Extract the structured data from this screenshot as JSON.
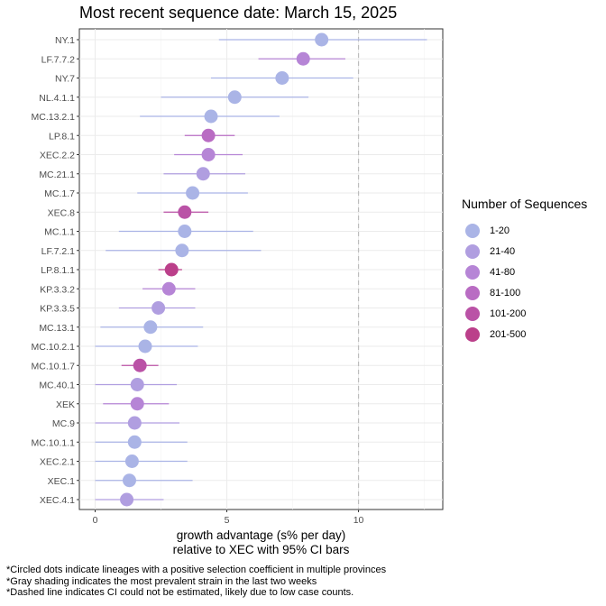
{
  "chart_data": {
    "type": "scatter",
    "title": "Most recent sequence date: March 15, 2025",
    "xlabel_line1": "growth advantage (s% per day)",
    "xlabel_line2": "relative to  XEC  with 95% CI bars",
    "xlim": [
      -0.6,
      13.2
    ],
    "xticks": [
      0,
      5,
      10
    ],
    "xtick_labels": [
      "0",
      "5",
      "10"
    ],
    "grid": true,
    "reference_line": {
      "x": 10,
      "style": "dashed"
    },
    "legend_title": "Number of Sequences",
    "legend_position": "right",
    "legend": [
      {
        "label": "1-20",
        "color": "#aab4e6"
      },
      {
        "label": "21-40",
        "color": "#b09ee0"
      },
      {
        "label": "41-80",
        "color": "#b685d6"
      },
      {
        "label": "81-100",
        "color": "#b96cc3"
      },
      {
        "label": "101-200",
        "color": "#ba52a6"
      },
      {
        "label": "201-500",
        "color": "#bb3f8a"
      }
    ],
    "series": [
      {
        "lineage": "NY.1",
        "estimate": 8.6,
        "ci": [
          4.7,
          12.6
        ],
        "count_bin": "1-20"
      },
      {
        "lineage": "LF.7.7.2",
        "estimate": 7.9,
        "ci": [
          6.2,
          9.5
        ],
        "count_bin": "41-80"
      },
      {
        "lineage": "NY.7",
        "estimate": 7.1,
        "ci": [
          4.4,
          9.8
        ],
        "count_bin": "1-20"
      },
      {
        "lineage": "NL.4.1.1",
        "estimate": 5.3,
        "ci": [
          2.5,
          8.1
        ],
        "count_bin": "1-20"
      },
      {
        "lineage": "MC.13.2.1",
        "estimate": 4.4,
        "ci": [
          1.7,
          7.0
        ],
        "count_bin": "1-20"
      },
      {
        "lineage": "LP.8.1",
        "estimate": 4.3,
        "ci": [
          3.4,
          5.3
        ],
        "count_bin": "81-100"
      },
      {
        "lineage": "XEC.2.2",
        "estimate": 4.3,
        "ci": [
          3.0,
          5.6
        ],
        "count_bin": "41-80"
      },
      {
        "lineage": "MC.21.1",
        "estimate": 4.1,
        "ci": [
          2.6,
          5.7
        ],
        "count_bin": "21-40"
      },
      {
        "lineage": "MC.1.7",
        "estimate": 3.7,
        "ci": [
          1.6,
          5.8
        ],
        "count_bin": "1-20"
      },
      {
        "lineage": "XEC.8",
        "estimate": 3.4,
        "ci": [
          2.6,
          4.3
        ],
        "count_bin": "101-200"
      },
      {
        "lineage": "MC.1.1",
        "estimate": 3.4,
        "ci": [
          0.9,
          6.0
        ],
        "count_bin": "1-20"
      },
      {
        "lineage": "LF.7.2.1",
        "estimate": 3.3,
        "ci": [
          0.4,
          6.3
        ],
        "count_bin": "1-20"
      },
      {
        "lineage": "LP.8.1.1",
        "estimate": 2.9,
        "ci": [
          2.4,
          3.3
        ],
        "count_bin": "201-500"
      },
      {
        "lineage": "KP.3.3.2",
        "estimate": 2.8,
        "ci": [
          1.8,
          3.8
        ],
        "count_bin": "41-80"
      },
      {
        "lineage": "KP.3.3.5",
        "estimate": 2.4,
        "ci": [
          0.9,
          3.8
        ],
        "count_bin": "21-40"
      },
      {
        "lineage": "MC.13.1",
        "estimate": 2.1,
        "ci": [
          0.2,
          4.1
        ],
        "count_bin": "1-20"
      },
      {
        "lineage": "MC.10.2.1",
        "estimate": 1.9,
        "ci": [
          0.0,
          3.9
        ],
        "count_bin": "1-20"
      },
      {
        "lineage": "MC.10.1.7",
        "estimate": 1.7,
        "ci": [
          1.0,
          2.4
        ],
        "count_bin": "101-200"
      },
      {
        "lineage": "MC.40.1",
        "estimate": 1.6,
        "ci": [
          0.0,
          3.1
        ],
        "count_bin": "21-40"
      },
      {
        "lineage": "XEK",
        "estimate": 1.6,
        "ci": [
          0.3,
          2.8
        ],
        "count_bin": "41-80"
      },
      {
        "lineage": "MC.9",
        "estimate": 1.5,
        "ci": [
          0.0,
          3.2
        ],
        "count_bin": "21-40"
      },
      {
        "lineage": "MC.10.1.1",
        "estimate": 1.5,
        "ci": [
          0.0,
          3.5
        ],
        "count_bin": "1-20"
      },
      {
        "lineage": "XEC.2.1",
        "estimate": 1.4,
        "ci": [
          0.0,
          3.5
        ],
        "count_bin": "1-20"
      },
      {
        "lineage": "XEC.1",
        "estimate": 1.3,
        "ci": [
          0.0,
          3.7
        ],
        "count_bin": "1-20"
      },
      {
        "lineage": "XEC.4.1",
        "estimate": 1.2,
        "ci": [
          0.0,
          2.6
        ],
        "count_bin": "21-40"
      }
    ],
    "footnotes": [
      "*Circled dots indicate lineages with a positive selection coefficient in multiple provinces",
      "*Gray shading indicates the most prevalent strain in the last two weeks",
      "*Dashed line indicates CI could not be estimated, likely due to low case counts."
    ]
  }
}
